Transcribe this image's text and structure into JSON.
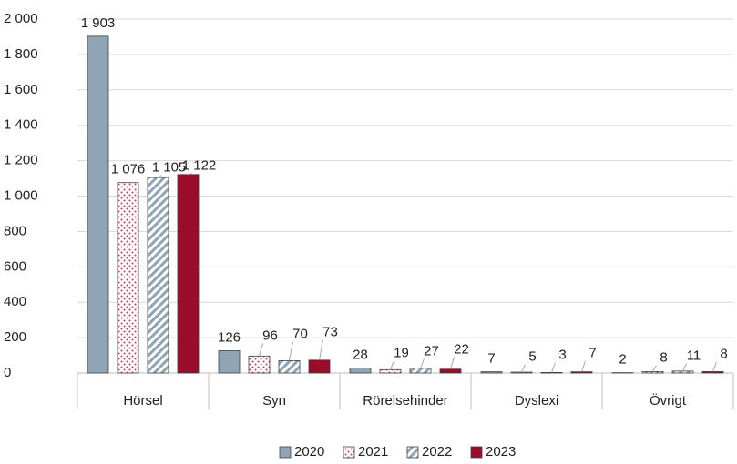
{
  "chart_data": {
    "type": "bar",
    "categories": [
      "Hörsel",
      "Syn",
      "Rörelsehinder",
      "Dyslexi",
      "Övrigt"
    ],
    "series": [
      {
        "name": "2020",
        "color": "#8fa4b5",
        "pattern": "solid",
        "values": [
          1903,
          126,
          28,
          7,
          2
        ],
        "value_labels": [
          "1 903",
          "126",
          "28",
          "7",
          "2"
        ]
      },
      {
        "name": "2021",
        "color": "#c0395a",
        "pattern": "dots",
        "values": [
          1076,
          96,
          19,
          5,
          8
        ],
        "value_labels": [
          "1 076",
          "96",
          "19",
          "5",
          "8"
        ]
      },
      {
        "name": "2022",
        "color": "#8fa4b5",
        "pattern": "stripes",
        "values": [
          1105,
          70,
          27,
          3,
          11
        ],
        "value_labels": [
          "1 105",
          "70",
          "27",
          "3",
          "11"
        ]
      },
      {
        "name": "2023",
        "color": "#9b0c2b",
        "pattern": "solid",
        "values": [
          1122,
          73,
          22,
          7,
          8
        ],
        "value_labels": [
          "1 122",
          "73",
          "22",
          "7",
          "8"
        ]
      }
    ],
    "ylim": [
      0,
      2000
    ],
    "yticks": [
      0,
      200,
      400,
      600,
      800,
      {
        "value": 1000,
        "label": "1 000"
      },
      {
        "value": 1200,
        "label": "1 200"
      },
      {
        "value": 1400,
        "label": "1 400"
      },
      {
        "value": 1600,
        "label": "1 600"
      },
      {
        "value": 1800,
        "label": "1 800"
      },
      {
        "value": 2000,
        "label": "2 000"
      }
    ],
    "grid": true,
    "legend": "bottom"
  }
}
